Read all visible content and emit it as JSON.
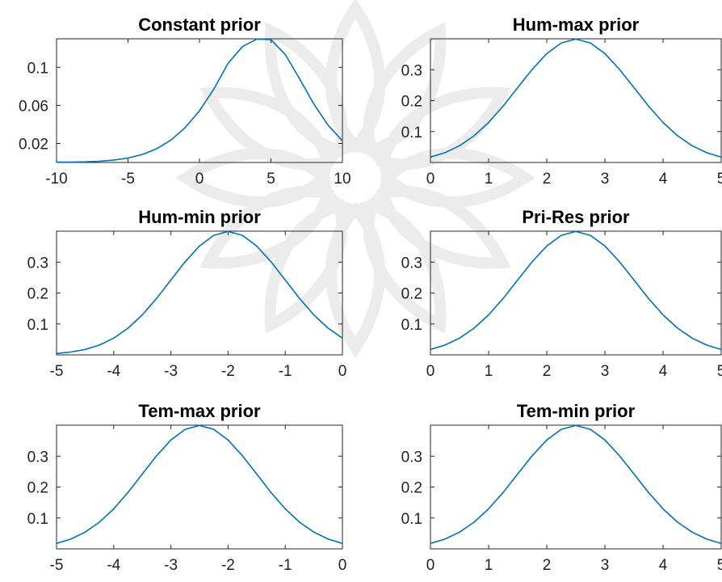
{
  "figure": {
    "watermark_color": "#d6d6d6",
    "line_color": "#0072BD",
    "axes_color": "#262626"
  },
  "chart_data": [
    {
      "type": "line",
      "title": "Constant prior",
      "xlabel": "",
      "ylabel": "",
      "xlim": [
        -10,
        10
      ],
      "ylim": [
        0,
        0.13
      ],
      "xticks": [
        -10,
        -5,
        0,
        5,
        10
      ],
      "yticks": [
        0.02,
        0.06,
        0.1
      ],
      "grid": false,
      "series": [
        {
          "x": [
            -10,
            -9,
            -8,
            -7,
            -6,
            -5,
            -4,
            -3,
            -2,
            -1,
            0,
            1,
            2,
            3,
            4,
            5,
            6,
            7,
            8,
            9,
            10
          ],
          "y": [
            0.0003,
            0.0004,
            0.0007,
            0.0013,
            0.0025,
            0.0047,
            0.0084,
            0.0144,
            0.0235,
            0.0366,
            0.0544,
            0.0771,
            0.1042,
            0.1218,
            0.1297,
            0.1292,
            0.1135,
            0.088,
            0.0614,
            0.0392,
            0.0228
          ]
        }
      ]
    },
    {
      "type": "line",
      "title": "Hum-max prior",
      "xlabel": "",
      "ylabel": "",
      "xlim": [
        0,
        5
      ],
      "ylim": [
        0,
        0.4
      ],
      "xticks": [
        0,
        1,
        2,
        3,
        4,
        5
      ],
      "yticks": [
        0.1,
        0.2,
        0.3
      ],
      "grid": false,
      "series": [
        {
          "x": [
            0,
            0.25,
            0.5,
            0.75,
            1,
            1.25,
            1.5,
            1.75,
            2,
            2.25,
            2.5,
            2.75,
            3,
            3.25,
            3.5,
            3.75,
            4,
            4.25,
            4.5,
            4.75,
            5
          ],
          "y": [
            0.0175,
            0.0317,
            0.054,
            0.0863,
            0.1295,
            0.1826,
            0.242,
            0.3011,
            0.3521,
            0.3867,
            0.3989,
            0.3867,
            0.3521,
            0.3011,
            0.242,
            0.1826,
            0.1295,
            0.0863,
            0.054,
            0.0317,
            0.0175
          ]
        }
      ]
    },
    {
      "type": "line",
      "title": "Hum-min prior",
      "xlabel": "",
      "ylabel": "",
      "xlim": [
        -5,
        0
      ],
      "ylim": [
        0,
        0.4
      ],
      "xticks": [
        -5,
        -4,
        -3,
        -2,
        -1,
        0
      ],
      "yticks": [
        0.1,
        0.2,
        0.3
      ],
      "grid": false,
      "series": [
        {
          "x": [
            -5,
            -4.75,
            -4.5,
            -4.25,
            -4,
            -3.75,
            -3.5,
            -3.25,
            -3,
            -2.75,
            -2.5,
            -2.25,
            -2,
            -1.75,
            -1.5,
            -1.25,
            -1,
            -0.75,
            -0.5,
            -0.25,
            0
          ],
          "y": [
            0.0044,
            0.0091,
            0.0175,
            0.0317,
            0.054,
            0.0863,
            0.1295,
            0.1826,
            0.242,
            0.3011,
            0.3521,
            0.3867,
            0.3989,
            0.3867,
            0.3521,
            0.3011,
            0.242,
            0.1826,
            0.1295,
            0.0863,
            0.054
          ]
        }
      ]
    },
    {
      "type": "line",
      "title": "Pri-Res prior",
      "xlabel": "",
      "ylabel": "",
      "xlim": [
        0,
        5
      ],
      "ylim": [
        0,
        0.4
      ],
      "xticks": [
        0,
        1,
        2,
        3,
        4,
        5
      ],
      "yticks": [
        0.1,
        0.2,
        0.3
      ],
      "grid": false,
      "series": [
        {
          "x": [
            0,
            0.25,
            0.5,
            0.75,
            1,
            1.25,
            1.5,
            1.75,
            2,
            2.25,
            2.5,
            2.75,
            3,
            3.25,
            3.5,
            3.75,
            4,
            4.25,
            4.5,
            4.75,
            5
          ],
          "y": [
            0.0175,
            0.0317,
            0.054,
            0.0863,
            0.1295,
            0.1826,
            0.242,
            0.3011,
            0.3521,
            0.3867,
            0.3989,
            0.3867,
            0.3521,
            0.3011,
            0.242,
            0.1826,
            0.1295,
            0.0863,
            0.054,
            0.0317,
            0.0175
          ]
        }
      ]
    },
    {
      "type": "line",
      "title": "Tem-max prior",
      "xlabel": "",
      "ylabel": "",
      "xlim": [
        -5,
        0
      ],
      "ylim": [
        0,
        0.4
      ],
      "xticks": [
        -5,
        -4,
        -3,
        -2,
        -1,
        0
      ],
      "yticks": [
        0.1,
        0.2,
        0.3
      ],
      "grid": false,
      "series": [
        {
          "x": [
            -5,
            -4.75,
            -4.5,
            -4.25,
            -4,
            -3.75,
            -3.5,
            -3.25,
            -3,
            -2.75,
            -2.5,
            -2.25,
            -2,
            -1.75,
            -1.5,
            -1.25,
            -1,
            -0.75,
            -0.5,
            -0.25,
            0
          ],
          "y": [
            0.0175,
            0.0317,
            0.054,
            0.0863,
            0.1295,
            0.1826,
            0.242,
            0.3011,
            0.3521,
            0.3867,
            0.3989,
            0.3867,
            0.3521,
            0.3011,
            0.242,
            0.1826,
            0.1295,
            0.0863,
            0.054,
            0.0317,
            0.0175
          ]
        }
      ]
    },
    {
      "type": "line",
      "title": "Tem-min prior",
      "xlabel": "",
      "ylabel": "",
      "xlim": [
        0,
        5
      ],
      "ylim": [
        0,
        0.4
      ],
      "xticks": [
        0,
        1,
        2,
        3,
        4,
        5
      ],
      "yticks": [
        0.1,
        0.2,
        0.3
      ],
      "grid": false,
      "series": [
        {
          "x": [
            0,
            0.25,
            0.5,
            0.75,
            1,
            1.25,
            1.5,
            1.75,
            2,
            2.25,
            2.5,
            2.75,
            3,
            3.25,
            3.5,
            3.75,
            4,
            4.25,
            4.5,
            4.75,
            5
          ],
          "y": [
            0.0175,
            0.0317,
            0.054,
            0.0863,
            0.1295,
            0.1826,
            0.242,
            0.3011,
            0.3521,
            0.3867,
            0.3989,
            0.3867,
            0.3521,
            0.3011,
            0.242,
            0.1826,
            0.1295,
            0.0863,
            0.054,
            0.0317,
            0.0175
          ]
        }
      ]
    }
  ]
}
